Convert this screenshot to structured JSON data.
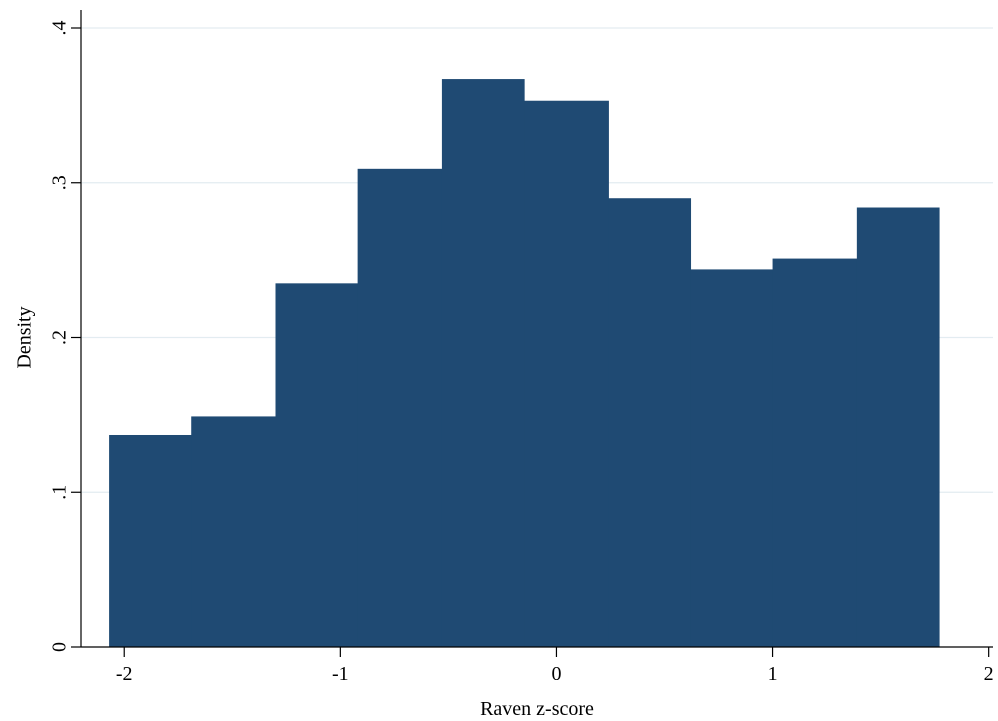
{
  "chart_data": {
    "type": "bar",
    "subtype": "histogram",
    "xlabel": "Raven z-score",
    "ylabel": "Density",
    "xlim": [
      -2.2,
      2.02
    ],
    "ylim": [
      0,
      0.4
    ],
    "x_ticks": [
      -2,
      -1,
      0,
      1,
      2
    ],
    "x_tick_labels": [
      "-2",
      "-1",
      "0",
      "1",
      "2"
    ],
    "y_ticks": [
      0,
      0.1,
      0.2,
      0.3,
      0.4
    ],
    "y_tick_labels": [
      "0",
      ".1",
      ".2",
      ".3",
      ".4"
    ],
    "grid": "horizontal",
    "bar_color": "#1f4a73",
    "grid_color": "#e3ecf1",
    "bins": [
      {
        "x0": -2.07,
        "x1": -1.69,
        "density": 0.137
      },
      {
        "x0": -1.69,
        "x1": -1.3,
        "density": 0.149
      },
      {
        "x0": -1.3,
        "x1": -0.92,
        "density": 0.235
      },
      {
        "x0": -0.92,
        "x1": -0.53,
        "density": 0.309
      },
      {
        "x0": -0.53,
        "x1": -0.15,
        "density": 0.367
      },
      {
        "x0": -0.15,
        "x1": 0.24,
        "density": 0.353
      },
      {
        "x0": 0.24,
        "x1": 0.62,
        "density": 0.29
      },
      {
        "x0": 0.62,
        "x1": 1.0,
        "density": 0.244
      },
      {
        "x0": 1.0,
        "x1": 1.39,
        "density": 0.251
      },
      {
        "x0": 1.39,
        "x1": 1.77,
        "density": 0.284
      }
    ]
  }
}
